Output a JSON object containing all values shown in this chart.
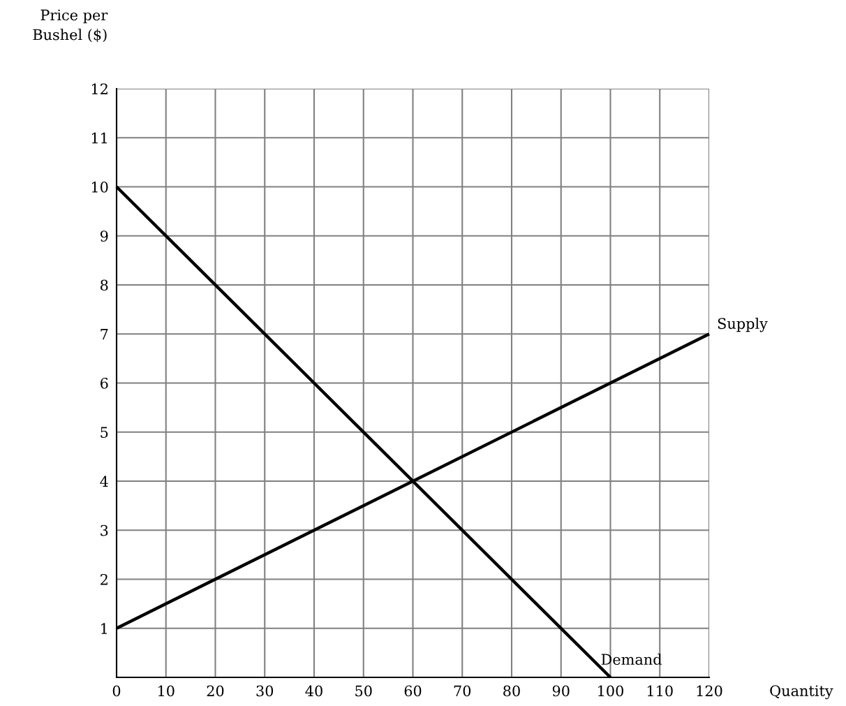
{
  "chart_data": {
    "type": "line",
    "xlabel": "Quantity",
    "ylabel": "Price per\nBushel ($)",
    "xlim": [
      0,
      120
    ],
    "ylim": [
      0,
      12
    ],
    "xticks": [
      0,
      10,
      20,
      30,
      40,
      50,
      60,
      70,
      80,
      90,
      100,
      110,
      120
    ],
    "yticks": [
      1,
      2,
      3,
      4,
      5,
      6,
      7,
      8,
      9,
      10,
      11,
      12
    ],
    "grid": true,
    "legend": false,
    "marker": "none",
    "line_style": "solid",
    "series": [
      {
        "name": "Supply",
        "color": "#000000",
        "x": [
          0,
          120
        ],
        "values": [
          1,
          7
        ]
      },
      {
        "name": "Demand",
        "color": "#000000",
        "x": [
          0,
          100
        ],
        "values": [
          10,
          0
        ]
      }
    ]
  }
}
